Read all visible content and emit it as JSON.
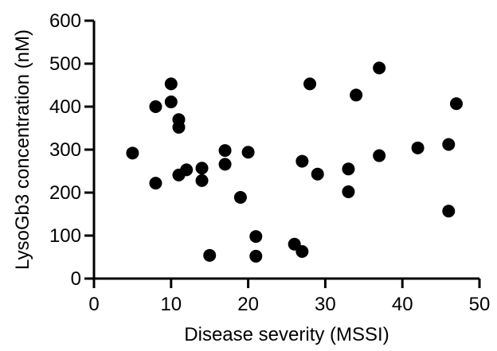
{
  "chart_data": {
    "type": "scatter",
    "title": "",
    "xlabel": "Disease severity (MSSI)",
    "ylabel": "LysoGb3 concentration (nM)",
    "xlim": [
      0,
      50
    ],
    "ylim": [
      0,
      600
    ],
    "xticks": [
      0,
      10,
      20,
      30,
      40,
      50
    ],
    "yticks": [
      0,
      100,
      200,
      300,
      400,
      500,
      600
    ],
    "grid": false,
    "legend": "none",
    "marker_color": "#000000",
    "series": [
      {
        "points": [
          {
            "x": 5,
            "y": 292
          },
          {
            "x": 8,
            "y": 400
          },
          {
            "x": 8,
            "y": 222
          },
          {
            "x": 10,
            "y": 453
          },
          {
            "x": 10,
            "y": 411
          },
          {
            "x": 11,
            "y": 370
          },
          {
            "x": 11,
            "y": 352
          },
          {
            "x": 11,
            "y": 241
          },
          {
            "x": 12,
            "y": 253
          },
          {
            "x": 14,
            "y": 257
          },
          {
            "x": 14,
            "y": 228
          },
          {
            "x": 15,
            "y": 54
          },
          {
            "x": 17,
            "y": 298
          },
          {
            "x": 17,
            "y": 266
          },
          {
            "x": 19,
            "y": 189
          },
          {
            "x": 20,
            "y": 294
          },
          {
            "x": 21,
            "y": 98
          },
          {
            "x": 21,
            "y": 52
          },
          {
            "x": 26,
            "y": 80
          },
          {
            "x": 27,
            "y": 273
          },
          {
            "x": 27,
            "y": 63
          },
          {
            "x": 28,
            "y": 453
          },
          {
            "x": 29,
            "y": 243
          },
          {
            "x": 33,
            "y": 255
          },
          {
            "x": 33,
            "y": 202
          },
          {
            "x": 34,
            "y": 427
          },
          {
            "x": 37,
            "y": 490
          },
          {
            "x": 37,
            "y": 286
          },
          {
            "x": 42,
            "y": 304
          },
          {
            "x": 46,
            "y": 312
          },
          {
            "x": 46,
            "y": 157
          },
          {
            "x": 47,
            "y": 407
          }
        ]
      }
    ]
  }
}
